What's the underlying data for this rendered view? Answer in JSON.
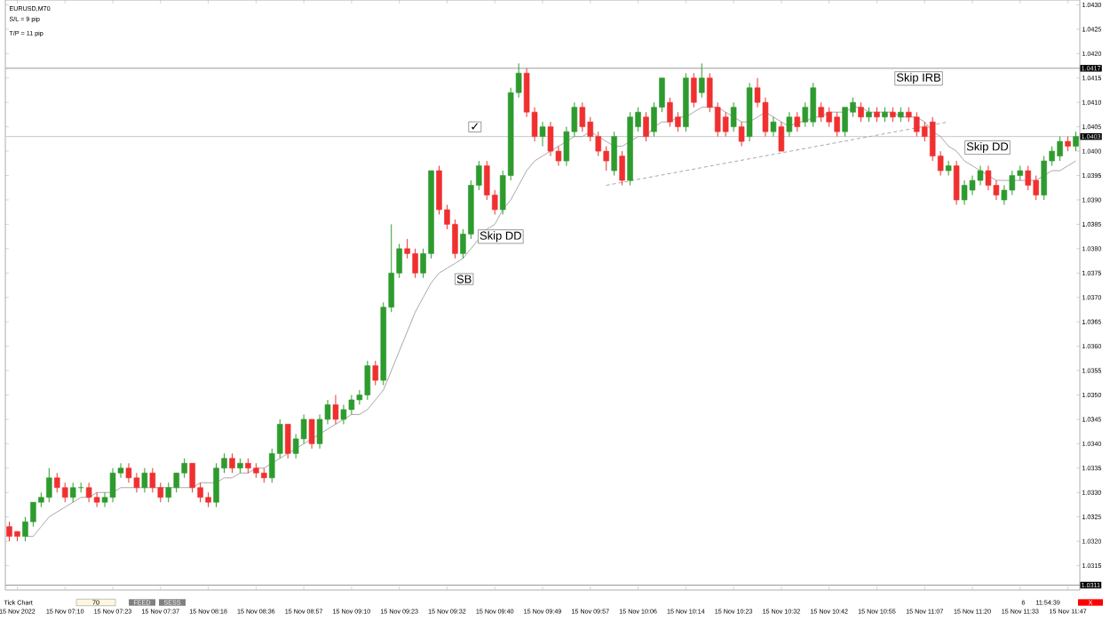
{
  "chart_data": {
    "type": "candlestick",
    "title": "EURUSD,M70",
    "categories": [
      null,
      "15 Nov 2022",
      null,
      null,
      null,
      null,
      null,
      "15 Nov 07:10",
      null,
      null,
      null,
      null,
      null,
      "15 Nov 07:23",
      null,
      null,
      null,
      null,
      null,
      "15 Nov 07:37",
      null,
      null,
      null,
      null,
      null,
      "15 Nov 08:18",
      null,
      null,
      null,
      null,
      null,
      "15 Nov 08:36",
      null,
      null,
      null,
      null,
      null,
      "15 Nov 08:57",
      null,
      null,
      null,
      null,
      null,
      "15 Nov 09:10",
      null,
      null,
      null,
      null,
      null,
      "15 Nov 09:23",
      null,
      null,
      null,
      null,
      null,
      "15 Nov 09:32",
      null,
      null,
      null,
      null,
      null,
      "15 Nov 09:40",
      null,
      null,
      null,
      null,
      null,
      "15 Nov 09:49",
      null,
      null,
      null,
      null,
      null,
      "15 Nov 09:57",
      null,
      null,
      null,
      null,
      null,
      "15 Nov 10:06",
      null,
      null,
      null,
      null,
      null,
      "15 Nov 10:14",
      null,
      null,
      null,
      null,
      null,
      "15 Nov 10:23",
      null,
      null,
      null,
      null,
      null,
      "15 Nov 10:32",
      null,
      null,
      null,
      null,
      null,
      "15 Nov 10:42",
      null,
      null,
      null,
      null,
      null,
      "15 Nov 10:55",
      null,
      null,
      null,
      null,
      null,
      "15 Nov 11:07",
      null,
      null,
      null,
      null,
      null,
      "15 Nov 11:20",
      null,
      null,
      null,
      null,
      null,
      "15 Nov 11:33",
      null,
      null,
      null,
      null,
      null,
      "15 Nov 11:47",
      null
    ],
    "ohlc": [
      [
        1.0323,
        1.0324,
        1.032,
        1.0321
      ],
      [
        1.0322,
        1.0322,
        1.032,
        1.0321
      ],
      [
        1.0321,
        1.0325,
        1.032,
        1.0324
      ],
      [
        1.0324,
        1.0328,
        1.0323,
        1.0328
      ],
      [
        1.0328,
        1.033,
        1.0327,
        1.0329
      ],
      [
        1.0329,
        1.0335,
        1.0328,
        1.0333
      ],
      [
        1.0333,
        1.0334,
        1.033,
        1.0331
      ],
      [
        1.0331,
        1.0332,
        1.0328,
        1.0329
      ],
      [
        1.0329,
        1.0332,
        1.0328,
        1.0331
      ],
      [
        1.0331,
        1.0332,
        1.033,
        1.0331
      ],
      [
        1.0331,
        1.0332,
        1.0328,
        1.0329
      ],
      [
        1.0329,
        1.033,
        1.0327,
        1.0328
      ],
      [
        1.0328,
        1.033,
        1.0327,
        1.0329
      ],
      [
        1.0329,
        1.0335,
        1.0328,
        1.0334
      ],
      [
        1.0334,
        1.0336,
        1.0333,
        1.0335
      ],
      [
        1.0335,
        1.0336,
        1.0332,
        1.0333
      ],
      [
        1.0333,
        1.0334,
        1.033,
        1.0331
      ],
      [
        1.0331,
        1.0335,
        1.033,
        1.0334
      ],
      [
        1.0334,
        1.0335,
        1.033,
        1.0331
      ],
      [
        1.0331,
        1.0332,
        1.0328,
        1.0329
      ],
      [
        1.0329,
        1.0332,
        1.0328,
        1.0331
      ],
      [
        1.0331,
        1.0334,
        1.033,
        1.0334
      ],
      [
        1.0334,
        1.0337,
        1.0333,
        1.0336
      ],
      [
        1.0336,
        1.0336,
        1.033,
        1.0331
      ],
      [
        1.0331,
        1.0332,
        1.0328,
        1.0329
      ],
      [
        1.0329,
        1.033,
        1.0327,
        1.0328
      ],
      [
        1.0328,
        1.0336,
        1.0327,
        1.0335
      ],
      [
        1.0335,
        1.0338,
        1.0334,
        1.0337
      ],
      [
        1.0337,
        1.0338,
        1.0334,
        1.0335
      ],
      [
        1.0335,
        1.0337,
        1.0334,
        1.0336
      ],
      [
        1.0336,
        1.0337,
        1.0334,
        1.0335
      ],
      [
        1.0335,
        1.0336,
        1.0333,
        1.0334
      ],
      [
        1.0334,
        1.0335,
        1.0332,
        1.0333
      ],
      [
        1.0333,
        1.0339,
        1.0332,
        1.0338
      ],
      [
        1.0338,
        1.0345,
        1.0337,
        1.0344
      ],
      [
        1.0344,
        1.0344,
        1.0337,
        1.0338
      ],
      [
        1.0338,
        1.0342,
        1.0337,
        1.0341
      ],
      [
        1.0341,
        1.0346,
        1.034,
        1.0345
      ],
      [
        1.0345,
        1.0345,
        1.0339,
        1.034
      ],
      [
        1.034,
        1.0346,
        1.0339,
        1.0345
      ],
      [
        1.0345,
        1.0349,
        1.0344,
        1.0348
      ],
      [
        1.0348,
        1.035,
        1.0344,
        1.0345
      ],
      [
        1.0345,
        1.0348,
        1.0344,
        1.0347
      ],
      [
        1.0347,
        1.035,
        1.0346,
        1.0349
      ],
      [
        1.0349,
        1.0351,
        1.0348,
        1.035
      ],
      [
        1.035,
        1.0357,
        1.0349,
        1.0356
      ],
      [
        1.0356,
        1.0357,
        1.0352,
        1.0353
      ],
      [
        1.0353,
        1.0369,
        1.0352,
        1.0368
      ],
      [
        1.0368,
        1.0385,
        1.0367,
        1.0375
      ],
      [
        1.0375,
        1.0381,
        1.0374,
        1.038
      ],
      [
        1.038,
        1.0382,
        1.0378,
        1.0379
      ],
      [
        1.0379,
        1.038,
        1.0374,
        1.0375
      ],
      [
        1.0375,
        1.038,
        1.0374,
        1.0379
      ],
      [
        1.0379,
        1.0396,
        1.0378,
        1.0396
      ],
      [
        1.0396,
        1.0397,
        1.0387,
        1.0388
      ],
      [
        1.0388,
        1.0389,
        1.0384,
        1.0385
      ],
      [
        1.0385,
        1.0386,
        1.0378,
        1.0379
      ],
      [
        1.0379,
        1.0384,
        1.0378,
        1.0383
      ],
      [
        1.0383,
        1.0394,
        1.0382,
        1.0393
      ],
      [
        1.0393,
        1.0398,
        1.0392,
        1.0397
      ],
      [
        1.0397,
        1.0398,
        1.039,
        1.0391
      ],
      [
        1.0391,
        1.0392,
        1.0387,
        1.0388
      ],
      [
        1.0388,
        1.0396,
        1.0387,
        1.0395
      ],
      [
        1.0395,
        1.0413,
        1.0394,
        1.0412
      ],
      [
        1.0412,
        1.0418,
        1.0411,
        1.0416
      ],
      [
        1.0416,
        1.0417,
        1.0407,
        1.0408
      ],
      [
        1.0408,
        1.0409,
        1.0402,
        1.0403
      ],
      [
        1.0403,
        1.0406,
        1.0401,
        1.0405
      ],
      [
        1.0405,
        1.0406,
        1.0399,
        1.04
      ],
      [
        1.04,
        1.0401,
        1.0397,
        1.0398
      ],
      [
        1.0398,
        1.0405,
        1.0397,
        1.0404
      ],
      [
        1.0404,
        1.041,
        1.0403,
        1.0409
      ],
      [
        1.0409,
        1.041,
        1.0404,
        1.0405
      ],
      [
        1.0406,
        1.0407,
        1.0402,
        1.0403
      ],
      [
        1.0403,
        1.0404,
        1.0399,
        1.04
      ],
      [
        1.04,
        1.0401,
        1.0396,
        1.0398
      ],
      [
        1.0396,
        1.0404,
        1.0395,
        1.0403
      ],
      [
        1.0399,
        1.04,
        1.0393,
        1.0394
      ],
      [
        1.0394,
        1.0408,
        1.0393,
        1.0407
      ],
      [
        1.0405,
        1.0409,
        1.0404,
        1.0408
      ],
      [
        1.0407,
        1.0408,
        1.0402,
        1.0403
      ],
      [
        1.0404,
        1.041,
        1.0403,
        1.0409
      ],
      [
        1.0409,
        1.0415,
        1.0408,
        1.0415
      ],
      [
        1.041,
        1.0411,
        1.0405,
        1.0406
      ],
      [
        1.0407,
        1.0408,
        1.0404,
        1.0405
      ],
      [
        1.0405,
        1.0416,
        1.0404,
        1.0415
      ],
      [
        1.0415,
        1.0416,
        1.0409,
        1.041
      ],
      [
        1.0412,
        1.0418,
        1.0411,
        1.0415
      ],
      [
        1.0415,
        1.0416,
        1.0408,
        1.0409
      ],
      [
        1.0409,
        1.041,
        1.0403,
        1.0404
      ],
      [
        1.0407,
        1.0408,
        1.0403,
        1.0404
      ],
      [
        1.0405,
        1.041,
        1.0404,
        1.0409
      ],
      [
        1.0405,
        1.0406,
        1.0401,
        1.0402
      ],
      [
        1.0403,
        1.0414,
        1.0402,
        1.0413
      ],
      [
        1.0413,
        1.0415,
        1.0409,
        1.041
      ],
      [
        1.041,
        1.0411,
        1.0403,
        1.0404
      ],
      [
        1.0404,
        1.0407,
        1.0403,
        1.0406
      ],
      [
        1.0405,
        1.0406,
        1.04,
        1.04
      ],
      [
        1.0404,
        1.0408,
        1.0403,
        1.0407
      ],
      [
        1.0407,
        1.0408,
        1.0404,
        1.0405
      ],
      [
        1.0406,
        1.041,
        1.0405,
        1.0409
      ],
      [
        1.0406,
        1.0414,
        1.0405,
        1.0413
      ],
      [
        1.0409,
        1.041,
        1.0406,
        1.0407
      ],
      [
        1.0408,
        1.0409,
        1.0405,
        1.0406
      ],
      [
        1.0407,
        1.0408,
        1.0403,
        1.0404
      ],
      [
        1.0404,
        1.0409,
        1.0403,
        1.0409
      ],
      [
        1.0408,
        1.0411,
        1.0407,
        1.041
      ],
      [
        1.0409,
        1.041,
        1.0406,
        1.0407
      ],
      [
        1.0407,
        1.0409,
        1.0406,
        1.0408
      ],
      [
        1.0408,
        1.0409,
        1.0406,
        1.0407
      ],
      [
        1.0407,
        1.0409,
        1.0406,
        1.0408
      ],
      [
        1.0408,
        1.0409,
        1.0406,
        1.0407
      ],
      [
        1.0407,
        1.0409,
        1.0406,
        1.0408
      ],
      [
        1.0408,
        1.0409,
        1.0406,
        1.0407
      ],
      [
        1.0407,
        1.0408,
        1.0403,
        1.0404
      ],
      [
        1.0405,
        1.0406,
        1.0402,
        1.0403
      ],
      [
        1.0406,
        1.0407,
        1.0398,
        1.0399
      ],
      [
        1.0399,
        1.04,
        1.0395,
        1.0396
      ],
      [
        1.0396,
        1.0398,
        1.0395,
        1.0397
      ],
      [
        1.0397,
        1.0398,
        1.0389,
        1.039
      ],
      [
        1.039,
        1.0394,
        1.0389,
        1.0393
      ],
      [
        1.0392,
        1.0395,
        1.0391,
        1.0394
      ],
      [
        1.0394,
        1.0397,
        1.0393,
        1.0396
      ],
      [
        1.0396,
        1.0397,
        1.0392,
        1.0393
      ],
      [
        1.0393,
        1.0394,
        1.039,
        1.0391
      ],
      [
        1.039,
        1.0393,
        1.0389,
        1.0392
      ],
      [
        1.0392,
        1.0396,
        1.0391,
        1.0395
      ],
      [
        1.0395,
        1.0397,
        1.0394,
        1.0396
      ],
      [
        1.0396,
        1.0397,
        1.0392,
        1.0393
      ],
      [
        1.0394,
        1.0395,
        1.039,
        1.0391
      ],
      [
        1.0391,
        1.0399,
        1.039,
        1.0398
      ],
      [
        1.0398,
        1.0401,
        1.0397,
        1.04
      ],
      [
        1.0399,
        1.0403,
        1.0398,
        1.0402
      ],
      [
        1.0402,
        1.0403,
        1.04,
        1.0401
      ],
      [
        1.0401,
        1.0404,
        1.04,
        1.0403
      ]
    ],
    "colors": [
      "#f03030",
      "#f03030",
      "#2e9b2e",
      "#2e9b2e",
      "#2e9b2e",
      "#2e9b2e",
      "#f03030",
      "#f03030",
      "#2e9b2e",
      "#2e9b2e",
      "#f03030",
      "#f03030",
      "#2e9b2e",
      "#2e9b2e",
      "#2e9b2e",
      "#f03030",
      "#f03030",
      "#2e9b2e",
      "#f03030",
      "#f03030",
      "#2e9b2e",
      "#2e9b2e",
      "#2e9b2e",
      "#f03030",
      "#f03030",
      "#f03030",
      "#2e9b2e",
      "#2e9b2e",
      "#f03030",
      "#2e9b2e",
      "#f03030",
      "#f03030",
      "#f03030",
      "#2e9b2e",
      "#2e9b2e",
      "#f03030",
      "#2e9b2e",
      "#2e9b2e",
      "#f03030",
      "#2e9b2e",
      "#2e9b2e",
      "#f03030",
      "#2e9b2e",
      "#2e9b2e",
      "#2e9b2e",
      "#2e9b2e",
      "#f03030",
      "#2e9b2e",
      "#2e9b2e",
      "#2e9b2e",
      "#f03030",
      "#f03030",
      "#2e9b2e",
      "#2e9b2e",
      "#f03030",
      "#f03030",
      "#f03030",
      "#2e9b2e",
      "#2e9b2e",
      "#2e9b2e",
      "#f03030",
      "#f03030",
      "#2e9b2e",
      "#2e9b2e",
      "#2e9b2e",
      "#f03030",
      "#f03030",
      "#2e9b2e",
      "#f03030",
      "#f03030",
      "#2e9b2e",
      "#2e9b2e",
      "#f03030",
      "#f03030",
      "#f03030",
      "#f03030",
      "#2e9b2e",
      "#f03030",
      "#2e9b2e",
      "#2e9b2e",
      "#f03030",
      "#2e9b2e",
      "#2e9b2e",
      "#f03030",
      "#f03030",
      "#2e9b2e",
      "#f03030",
      "#2e9b2e",
      "#f03030",
      "#f03030",
      "#f03030",
      "#2e9b2e",
      "#f03030",
      "#2e9b2e",
      "#f03030",
      "#f03030",
      "#2e9b2e",
      "#f03030",
      "#2e9b2e",
      "#f03030",
      "#2e9b2e",
      "#2e9b2e",
      "#f03030",
      "#f03030",
      "#f03030",
      "#2e9b2e",
      "#2e9b2e",
      "#f03030",
      "#2e9b2e",
      "#f03030",
      "#2e9b2e",
      "#f03030",
      "#2e9b2e",
      "#f03030",
      "#f03030",
      "#f03030",
      "#f03030",
      "#f03030",
      "#2e9b2e",
      "#f03030",
      "#2e9b2e",
      "#2e9b2e",
      "#2e9b2e",
      "#f03030",
      "#f03030",
      "#2e9b2e",
      "#2e9b2e",
      "#2e9b2e",
      "#f03030",
      "#f03030",
      "#2e9b2e",
      "#2e9b2e",
      "#2e9b2e",
      "#f03030",
      "#2e9b2e"
    ],
    "series": [
      {
        "type": "line",
        "color": "#a8a8a8",
        "values": [
          null,
          null,
          1.0321,
          1.0321,
          1.0323,
          1.0325,
          1.0326,
          1.0327,
          1.0328,
          1.0329,
          1.0329,
          1.033,
          1.033,
          1.033,
          1.0331,
          1.0331,
          1.0331,
          1.0331,
          1.0331,
          1.0331,
          1.0331,
          1.0331,
          1.0331,
          1.0331,
          1.0332,
          1.0332,
          1.0332,
          1.0333,
          1.0333,
          1.0334,
          1.0334,
          1.0335,
          1.0335,
          1.0336,
          1.0337,
          1.0338,
          1.0339,
          1.034,
          1.0341,
          1.0342,
          1.0343,
          1.0344,
          1.0345,
          1.0346,
          1.0346,
          1.0347,
          1.0349,
          1.0351,
          1.0355,
          1.0359,
          1.0363,
          1.0367,
          1.037,
          1.0373,
          1.0375,
          1.0376,
          1.0377,
          1.0378,
          1.038,
          1.0382,
          1.0384,
          1.0385,
          1.0388,
          1.039,
          1.0393,
          1.0396,
          1.0398,
          1.0399,
          1.04,
          1.0401,
          1.0402,
          1.0403,
          1.0403,
          1.0404,
          1.0403,
          1.0402,
          1.0401,
          1.0401,
          1.0402,
          1.0403,
          1.0403,
          1.0405,
          1.0406,
          1.0406,
          1.0407,
          1.0407,
          1.0408,
          1.0409,
          1.0409,
          1.0409,
          1.0408,
          1.0407,
          1.0406,
          1.0406,
          1.0407,
          1.0408,
          1.0407,
          1.0406,
          1.0405,
          1.0406,
          1.0406,
          1.0407,
          1.0407,
          1.0408,
          1.0408,
          1.0408,
          1.0409,
          1.0409,
          1.0408,
          1.0408,
          1.0408,
          1.0408,
          1.0407,
          1.0407,
          1.0407,
          1.0406,
          1.0404,
          1.0403,
          1.0401,
          1.04,
          1.0398,
          1.0397,
          1.0396,
          1.0395,
          1.0394,
          1.0394,
          1.0394,
          1.0394,
          1.0394,
          1.0394,
          1.0395,
          1.0396,
          1.0396,
          1.0397,
          1.0398
        ]
      },
      {
        "type": "line",
        "color": "#a8a8a8",
        "line_style": "dashed",
        "values": [
          null,
          null,
          null,
          null,
          null,
          null,
          null,
          null,
          null,
          null,
          null,
          null,
          null,
          null,
          null,
          null,
          null,
          null,
          null,
          null,
          null,
          null,
          null,
          null,
          null,
          null,
          null,
          null,
          null,
          null,
          null,
          null,
          null,
          null,
          null,
          null,
          null,
          null,
          null,
          null,
          null,
          null,
          null,
          null,
          null,
          null,
          null,
          null,
          null,
          null,
          null,
          null,
          null,
          null,
          null,
          null,
          null,
          null,
          null,
          null,
          null,
          null,
          null,
          null,
          null,
          null,
          null,
          null,
          null,
          null,
          null,
          null,
          null,
          null,
          null,
          1.0393,
          null,
          null,
          null,
          null,
          null,
          null,
          null,
          null,
          null,
          null,
          null,
          null,
          null,
          null,
          null,
          null,
          null,
          null,
          null,
          null,
          null,
          null,
          null,
          null,
          null,
          null,
          null,
          null,
          null,
          null,
          null,
          null,
          null,
          null,
          null,
          null,
          null,
          null,
          null,
          null,
          null,
          null,
          1.0406,
          null,
          null,
          null,
          null,
          null,
          null,
          null,
          null,
          null,
          null,
          null,
          null,
          null,
          null,
          null,
          null
        ]
      }
    ],
    "ylim": [
      1.031,
      1.0431
    ],
    "yticks": [
      {
        "value": 1.0315,
        "label": "1.0315"
      },
      {
        "value": 1.032,
        "label": "1.0320"
      },
      {
        "value": 1.0325,
        "label": "1.0325"
      },
      {
        "value": 1.033,
        "label": "1.0330"
      },
      {
        "value": 1.0335,
        "label": "1.0335"
      },
      {
        "value": 1.034,
        "label": "1.0340"
      },
      {
        "value": 1.0345,
        "label": "1.0345"
      },
      {
        "value": 1.035,
        "label": "1.0350"
      },
      {
        "value": 1.0355,
        "label": "1.0355"
      },
      {
        "value": 1.036,
        "label": "1.0360"
      },
      {
        "value": 1.0365,
        "label": "1.0365"
      },
      {
        "value": 1.037,
        "label": "1.0370"
      },
      {
        "value": 1.0375,
        "label": "1.0375"
      },
      {
        "value": 1.038,
        "label": "1.0380"
      },
      {
        "value": 1.0385,
        "label": "1.0385"
      },
      {
        "value": 1.039,
        "label": "1.0390"
      },
      {
        "value": 1.0395,
        "label": "1.0395"
      },
      {
        "value": 1.04,
        "label": "1.0400"
      },
      {
        "value": 1.0405,
        "label": "1.0405"
      },
      {
        "value": 1.041,
        "label": "1.0410"
      },
      {
        "value": 1.0415,
        "label": "1.0415"
      },
      {
        "value": 1.042,
        "label": "1.0420"
      },
      {
        "value": 1.0425,
        "label": "1.0425"
      },
      {
        "value": 1.043,
        "label": "1.0430"
      }
    ],
    "ref_lines": [
      {
        "axis": "y",
        "value": 1.0417,
        "label": "1.0417",
        "color": "#9a9a9a"
      },
      {
        "axis": "y",
        "value": 1.0403,
        "label": "1.0403",
        "color": "#c8c8c8"
      },
      {
        "axis": "y",
        "value": 1.0311,
        "label": "1.0311",
        "color": "#9a9a9a"
      }
    ],
    "annotations": [
      "S/L = 9 pip",
      "T/P = 11 pip",
      "✓",
      "SB",
      "Skip DD",
      "Skip IRB",
      "Skip DD",
      "Tick Chart",
      "70",
      "FEED",
      "SESS",
      "6",
      "11:54:39",
      "X"
    ]
  }
}
